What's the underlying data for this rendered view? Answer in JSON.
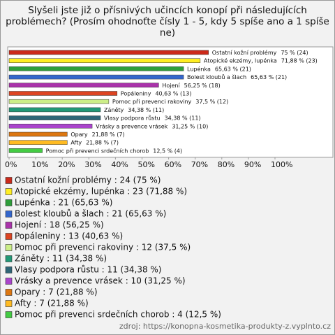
{
  "chart_data": {
    "type": "bar",
    "orientation": "horizontal",
    "title": "Slyšeli jste již o přísnivých učincích konopí při následujících problémech? (Prosím ohodnoťte čísly 1 - 5, kdy 5 spíše ano a 1 spíše ne)",
    "categories": [
      "Ostatní kožní problémy",
      "Atopické ekzémy, lupénka",
      "Lupénka",
      "Bolest kloubů a šlach",
      "Hojení",
      "Popáleniny",
      "Pomoc při prevenci rakoviny",
      "Záněty",
      "Vlasy podpora růstu",
      "Vrásky a prevence vrásek",
      "Opary",
      "Afty",
      "Pomoc při prevenci srdečních chorob"
    ],
    "values": [
      75,
      71.88,
      65.63,
      65.63,
      56.25,
      40.63,
      37.5,
      34.38,
      34.38,
      31.25,
      21.88,
      21.88,
      12.5
    ],
    "value_labels": [
      "75 % (24)",
      "71,88 % (23)",
      "65,63 % (21)",
      "65,63 % (21)",
      "56,25 % (18)",
      "40,63 % (13)",
      "37,5 % (12)",
      "34,38 % (11)",
      "34,38 % (11)",
      "31,25 % (10)",
      "21,88 % (7)",
      "21,88 % (7)",
      "12,5 % (4)"
    ],
    "colors": [
      "#cc2a1a",
      "#ffee22",
      "#2e9e3a",
      "#3366cc",
      "#aa33aa",
      "#dd4422",
      "#ccee88",
      "#229977",
      "#2f6677",
      "#aa44cc",
      "#dd7711",
      "#ffbb22",
      "#44cc44"
    ],
    "legend_labels": [
      "Ostatní kožní problémy : 24 (75 %)",
      "Atopické ekzémy, lupénka : 23 (71,88 %)",
      "Lupénka : 21 (65,63 %)",
      "Bolest kloubů a šlach : 21 (65,63 %)",
      "Hojení : 18 (56,25 %)",
      "Popáleniny : 13 (40,63 %)",
      "Pomoc při prevenci rakoviny : 12 (37,5 %)",
      "Záněty : 11 (34,38 %)",
      "Vlasy podpora růstu : 11 (34,38 %)",
      "Vrásky a prevence vrásek : 10 (31,25 %)",
      "Opary : 7 (21,88 %)",
      "Afty : 7 (21,88 %)",
      "Pomoc při prevenci srdečních chorob : 4 (12,5 %)"
    ],
    "xlim": [
      0,
      100
    ],
    "xticks": [
      {
        "value": 0,
        "label": "0%"
      },
      {
        "value": 10,
        "label": "10%"
      },
      {
        "value": 20,
        "label": "20%"
      },
      {
        "value": 30,
        "label": "30%"
      },
      {
        "value": 40,
        "label": "40%"
      },
      {
        "value": 50,
        "label": "50%"
      },
      {
        "value": 60,
        "label": "60%"
      },
      {
        "value": 70,
        "label": "70%"
      },
      {
        "value": 80,
        "label": "80%"
      },
      {
        "value": 90,
        "label": "90%"
      },
      {
        "value": 100,
        "label": "100%"
      }
    ],
    "source": "zdroj: https://konopna-kosmetika-produkty-z.vyplnto.cz"
  }
}
